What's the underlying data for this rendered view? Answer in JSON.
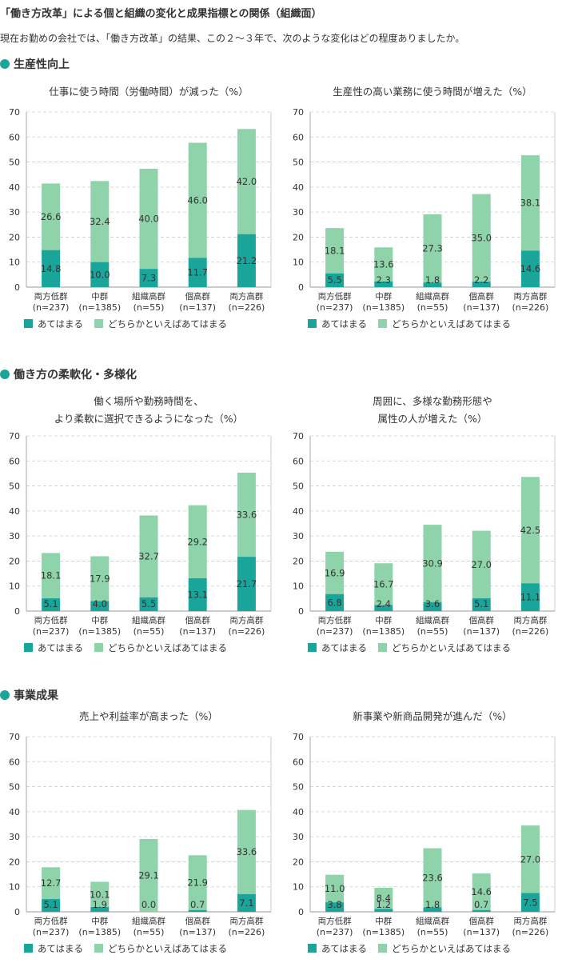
{
  "page": {
    "title": "「働き方改革」による個と組織の変化と成果指標との関係（組織面）",
    "question": "現在お勤めの会社では、「働き方改革」の結果、この２～３年で、次のような変化はどの程度ありましたか。"
  },
  "colors": {
    "series1": "#1aa59a",
    "series2": "#8fd3aa",
    "accent": "#1aa59a"
  },
  "sections": [
    {
      "title": "生産性向上"
    },
    {
      "title": "働き方の柔軟化・多様化"
    },
    {
      "title": "事業成果"
    }
  ],
  "chart_data": [
    {
      "type": "bar",
      "stacked": true,
      "title": [
        "仕事に使う時間（労働時間）が減った（%）"
      ],
      "categories": [
        "両方低群",
        "中群",
        "組織高群",
        "個高群",
        "両方高群"
      ],
      "category_sub": [
        "(n=237)",
        "(n=1385)",
        "(n=55)",
        "(n=137)",
        "(n=226)"
      ],
      "ylim": [
        0,
        70
      ],
      "yticks": [
        0,
        10,
        20,
        30,
        40,
        50,
        60,
        70
      ],
      "grid": true,
      "legend": "bottom",
      "series": [
        {
          "name": "あてはまる",
          "values": [
            14.8,
            10.0,
            7.3,
            11.7,
            21.2
          ]
        },
        {
          "name": "どちらかといえばあてはまる",
          "values": [
            26.6,
            32.4,
            40.0,
            46.0,
            42.0
          ]
        }
      ]
    },
    {
      "type": "bar",
      "stacked": true,
      "title": [
        "生産性の高い業務に使う時間が増えた（%）"
      ],
      "categories": [
        "両方低群",
        "中群",
        "組織高群",
        "個高群",
        "両方高群"
      ],
      "category_sub": [
        "(n=237)",
        "(n=1385)",
        "(n=55)",
        "(n=137)",
        "(n=226)"
      ],
      "ylim": [
        0,
        70
      ],
      "yticks": [
        0,
        10,
        20,
        30,
        40,
        50,
        60,
        70
      ],
      "grid": true,
      "legend": "bottom",
      "series": [
        {
          "name": "あてはまる",
          "values": [
            5.5,
            2.3,
            1.8,
            2.2,
            14.6
          ]
        },
        {
          "name": "どちらかといえばあてはまる",
          "values": [
            18.1,
            13.6,
            27.3,
            35.0,
            38.1
          ]
        }
      ]
    },
    {
      "type": "bar",
      "stacked": true,
      "title": [
        "働く場所や勤務時間を、",
        "より柔軟に選択できるようになった（%）"
      ],
      "categories": [
        "両方低群",
        "中群",
        "組織高群",
        "個高群",
        "両方高群"
      ],
      "category_sub": [
        "(n=237)",
        "(n=1385)",
        "(n=55)",
        "(n=137)",
        "(n=226)"
      ],
      "ylim": [
        0,
        70
      ],
      "yticks": [
        0,
        10,
        20,
        30,
        40,
        50,
        60,
        70
      ],
      "grid": true,
      "legend": "bottom",
      "series": [
        {
          "name": "あてはまる",
          "values": [
            5.1,
            4.0,
            5.5,
            13.1,
            21.7
          ]
        },
        {
          "name": "どちらかといえばあてはまる",
          "values": [
            18.1,
            17.9,
            32.7,
            29.2,
            33.6
          ]
        }
      ]
    },
    {
      "type": "bar",
      "stacked": true,
      "title": [
        "周囲に、多様な勤務形態や",
        "属性の人が増えた（%）"
      ],
      "categories": [
        "両方低群",
        "中群",
        "組織高群",
        "個高群",
        "両方高群"
      ],
      "category_sub": [
        "(n=237)",
        "(n=1385)",
        "(n=55)",
        "(n=137)",
        "(n=226)"
      ],
      "ylim": [
        0,
        70
      ],
      "yticks": [
        0,
        10,
        20,
        30,
        40,
        50,
        60,
        70
      ],
      "grid": true,
      "legend": "bottom",
      "series": [
        {
          "name": "あてはまる",
          "values": [
            6.8,
            2.4,
            3.6,
            5.1,
            11.1
          ]
        },
        {
          "name": "どちらかといえばあてはまる",
          "values": [
            16.9,
            16.7,
            30.9,
            27.0,
            42.5
          ]
        }
      ]
    },
    {
      "type": "bar",
      "stacked": true,
      "title": [
        "売上や利益率が高まった（%）"
      ],
      "categories": [
        "両方低群",
        "中群",
        "組織高群",
        "個高群",
        "両方高群"
      ],
      "category_sub": [
        "(n=237)",
        "(n=1385)",
        "(n=55)",
        "(n=137)",
        "(n=226)"
      ],
      "ylim": [
        0,
        70
      ],
      "yticks": [
        0,
        10,
        20,
        30,
        40,
        50,
        60,
        70
      ],
      "grid": true,
      "legend": "bottom",
      "series": [
        {
          "name": "あてはまる",
          "values": [
            5.1,
            1.9,
            0.0,
            0.7,
            7.1
          ]
        },
        {
          "name": "どちらかといえばあてはまる",
          "values": [
            12.7,
            10.1,
            29.1,
            21.9,
            33.6
          ]
        }
      ]
    },
    {
      "type": "bar",
      "stacked": true,
      "title": [
        "新事業や新商品開発が進んだ（%）"
      ],
      "categories": [
        "両方低群",
        "中群",
        "組織高群",
        "個高群",
        "両方高群"
      ],
      "category_sub": [
        "(n=237)",
        "(n=1385)",
        "(n=55)",
        "(n=137)",
        "(n=226)"
      ],
      "ylim": [
        0,
        70
      ],
      "yticks": [
        0,
        10,
        20,
        30,
        40,
        50,
        60,
        70
      ],
      "grid": true,
      "legend": "bottom",
      "series": [
        {
          "name": "あてはまる",
          "values": [
            3.8,
            1.2,
            1.8,
            0.7,
            7.5
          ]
        },
        {
          "name": "どちらかといえばあてはまる",
          "values": [
            11.0,
            8.4,
            23.6,
            14.6,
            27.0
          ]
        }
      ]
    }
  ]
}
